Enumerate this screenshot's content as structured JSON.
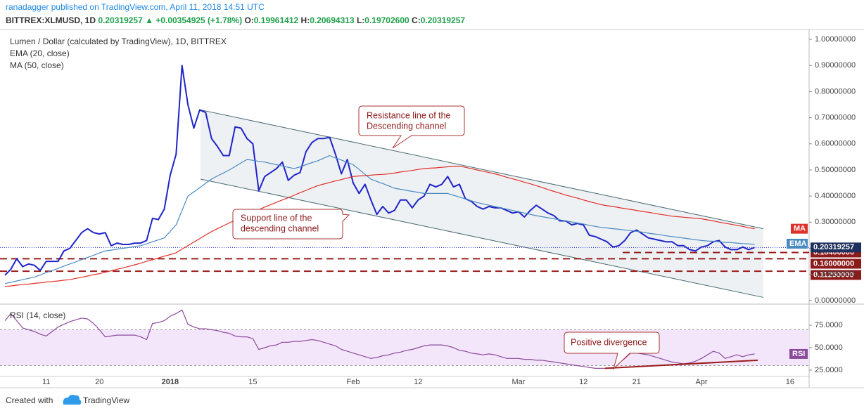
{
  "header": {
    "published": "ranadagger published on TradingView.com, April 11, 2018 14:51 UTC",
    "symbol": "BITTREX:XLMUSD, 1D",
    "last": "0.20319257",
    "change": "▲ +0.00354925 (+1.78%)",
    "ohlc": [
      {
        "label": "O:",
        "value": "0.19961412"
      },
      {
        "label": "H:",
        "value": "0.20694313"
      },
      {
        "label": "L:",
        "value": "0.19702600"
      },
      {
        "label": "C:",
        "value": "0.20319257"
      }
    ]
  },
  "footer": {
    "created": "Created with",
    "brand": "TradingView"
  },
  "chart_data": [
    {
      "type": "line",
      "title": "Lumen / Dollar (calculated by TradingView), 1D, BITTREX",
      "categories": [
        null,
        null,
        null,
        null,
        null,
        null,
        null,
        "11",
        null,
        null,
        null,
        null,
        null,
        null,
        null,
        null,
        "20",
        null,
        null,
        null,
        null,
        null,
        null,
        null,
        null,
        null,
        null,
        null,
        "2018",
        null,
        null,
        null,
        null,
        null,
        null,
        null,
        null,
        null,
        null,
        null,
        null,
        null,
        "15",
        null,
        null,
        null,
        null,
        null,
        null,
        null,
        null,
        null,
        null,
        null,
        null,
        null,
        null,
        null,
        null,
        "Feb",
        null,
        null,
        null,
        null,
        null,
        null,
        null,
        null,
        null,
        null,
        "12",
        null,
        null,
        null,
        null,
        null,
        null,
        null,
        null,
        null,
        null,
        null,
        null,
        null,
        null,
        null,
        null,
        "Mar",
        null,
        null,
        null,
        null,
        null,
        null,
        null,
        null,
        null,
        null,
        "12",
        null,
        null,
        null,
        null,
        null,
        null,
        null,
        null,
        "21",
        null,
        null,
        null,
        null,
        null,
        null,
        null,
        null,
        null,
        null,
        "Apr",
        null,
        null,
        null,
        null,
        null,
        null,
        null,
        null,
        null,
        null,
        null,
        null,
        null,
        null,
        "16",
        null,
        null,
        null
      ],
      "series": [
        {
          "name": "Lumen / Dollar (calculated by TradingView), 1D, BITTREX",
          "color": "#1f24c8",
          "values": [
            0.097,
            0.12,
            0.16,
            0.13,
            0.14,
            0.135,
            0.115,
            0.15,
            0.15,
            0.15,
            0.19,
            0.2,
            0.23,
            0.26,
            0.275,
            0.26,
            0.255,
            0.26,
            0.21,
            0.22,
            0.215,
            0.215,
            0.22,
            0.22,
            0.23,
            0.315,
            0.31,
            0.35,
            0.48,
            0.56,
            0.9,
            0.75,
            0.66,
            0.73,
            0.72,
            0.62,
            0.59,
            0.555,
            0.555,
            0.665,
            0.66,
            0.62,
            0.6,
            0.42,
            0.475,
            0.49,
            0.505,
            0.53,
            0.46,
            0.48,
            0.49,
            0.57,
            0.605,
            0.62,
            0.62,
            0.625,
            0.56,
            0.485,
            0.54,
            0.45,
            0.41,
            0.445,
            0.385,
            0.33,
            0.36,
            0.335,
            0.345,
            0.385,
            0.385,
            0.355,
            0.385,
            0.4,
            0.445,
            0.435,
            0.445,
            0.475,
            0.435,
            0.445,
            0.39,
            0.38,
            0.36,
            0.35,
            0.36,
            0.355,
            0.355,
            0.345,
            0.335,
            0.34,
            0.32,
            0.345,
            0.365,
            0.35,
            0.335,
            0.325,
            0.305,
            0.305,
            0.29,
            0.295,
            0.29,
            0.25,
            0.245,
            0.235,
            0.225,
            0.205,
            0.21,
            0.23,
            0.26,
            0.27,
            0.255,
            0.24,
            0.235,
            0.23,
            0.225,
            0.225,
            0.21,
            0.21,
            0.195,
            0.19,
            0.205,
            0.21,
            0.225,
            0.23,
            0.205,
            0.195,
            0.195,
            0.205,
            0.195,
            0.20319257,
            null,
            null,
            null,
            null,
            null,
            null,
            null,
            null,
            null
          ]
        },
        {
          "name": "EMA (20, close)",
          "color": "#4a8ac0",
          "values": [
            0.065,
            0.07,
            0.075,
            0.08,
            0.085,
            0.09,
            0.098,
            0.107,
            0.115,
            0.123,
            0.132,
            0.14,
            0.148,
            0.157,
            0.165,
            0.173,
            0.182,
            0.19,
            0.193,
            0.197,
            0.2,
            0.203,
            0.207,
            0.21,
            0.217,
            0.225,
            0.232,
            0.24,
            0.265,
            0.29,
            0.345,
            0.4,
            0.416,
            0.432,
            0.449,
            0.465,
            0.477,
            0.488,
            0.5,
            0.513,
            0.527,
            0.54,
            0.537,
            0.533,
            0.53,
            0.525,
            0.52,
            0.515,
            0.51,
            0.505,
            0.512,
            0.52,
            0.528,
            0.535,
            0.545,
            0.555,
            0.546,
            0.538,
            0.529,
            0.52,
            0.502,
            0.483,
            0.465,
            0.456,
            0.448,
            0.439,
            0.43,
            0.426,
            0.422,
            0.418,
            0.414,
            0.41,
            0.41,
            0.41,
            0.41,
            0.41,
            0.403,
            0.396,
            0.389,
            0.382,
            0.375,
            0.37,
            0.365,
            0.36,
            0.355,
            0.35,
            0.345,
            0.34,
            0.335,
            0.33,
            0.325,
            0.321,
            0.317,
            0.313,
            0.309,
            0.305,
            0.301,
            0.297,
            0.293,
            0.288,
            0.284,
            0.28,
            0.278,
            0.275,
            0.273,
            0.27,
            0.268,
            0.265,
            0.262,
            0.258,
            0.255,
            0.252,
            0.248,
            0.245,
            0.242,
            0.239,
            0.236,
            0.233,
            0.23,
            0.228,
            0.227,
            0.225,
            0.223,
            0.222,
            0.22,
            0.218,
            0.217,
            0.215,
            null,
            null,
            null,
            null,
            null,
            null,
            null,
            null,
            null
          ]
        },
        {
          "name": "MA (50, close)",
          "color": "#e0302a",
          "values": [
            0.054,
            0.056,
            0.059,
            0.061,
            0.063,
            0.066,
            0.068,
            0.071,
            0.073,
            0.075,
            0.078,
            0.08,
            0.085,
            0.089,
            0.094,
            0.099,
            0.103,
            0.108,
            0.114,
            0.12,
            0.125,
            0.131,
            0.137,
            0.143,
            0.15,
            0.156,
            0.163,
            0.17,
            0.176,
            0.183,
            0.197,
            0.21,
            0.224,
            0.237,
            0.251,
            0.264,
            0.275,
            0.286,
            0.297,
            0.308,
            0.319,
            0.33,
            0.339,
            0.348,
            0.358,
            0.367,
            0.376,
            0.385,
            0.394,
            0.403,
            0.413,
            0.422,
            0.431,
            0.44,
            0.446,
            0.452,
            0.458,
            0.463,
            0.469,
            0.475,
            0.477,
            0.478,
            0.48,
            0.482,
            0.483,
            0.485,
            0.488,
            0.492,
            0.495,
            0.498,
            0.502,
            0.505,
            0.507,
            0.508,
            0.51,
            0.512,
            0.513,
            0.515,
            0.51,
            0.505,
            0.5,
            0.495,
            0.49,
            0.485,
            0.479,
            0.472,
            0.466,
            0.46,
            0.453,
            0.447,
            0.44,
            0.433,
            0.425,
            0.418,
            0.411,
            0.404,
            0.398,
            0.392,
            0.385,
            0.379,
            0.373,
            0.367,
            0.363,
            0.36,
            0.356,
            0.352,
            0.349,
            0.345,
            0.341,
            0.338,
            0.334,
            0.33,
            0.327,
            0.323,
            0.321,
            0.319,
            0.317,
            0.315,
            0.313,
            0.309,
            0.305,
            0.3,
            0.296,
            0.292,
            0.288,
            0.284,
            0.279,
            0.275,
            null,
            null,
            null,
            null,
            null,
            null,
            null,
            null,
            null
          ]
        }
      ],
      "tags": [
        "EMA",
        "MA"
      ],
      "ylim": [
        -0.011,
        1.035
      ],
      "yticks": [
        {
          "value": 0,
          "label": "0.00000000"
        },
        {
          "value": 0.1,
          "label": "0.10000000"
        },
        {
          "value": 0.2,
          "label": "0.20000000"
        },
        {
          "value": 0.3,
          "label": "0.30000000"
        },
        {
          "value": 0.4,
          "label": "0.40000000"
        },
        {
          "value": 0.5,
          "label": "0.50000000"
        },
        {
          "value": 0.6,
          "label": "0.60000000"
        },
        {
          "value": 0.7,
          "label": "0.70000000"
        },
        {
          "value": 0.8,
          "label": "0.80000000"
        },
        {
          "value": 0.9,
          "label": "0.90000000"
        },
        {
          "value": 1,
          "label": "1.00000000"
        }
      ],
      "levels": [
        {
          "value": 0.184,
          "label": "0.18400000"
        },
        {
          "value": 0.16,
          "label": "0.16000000"
        },
        {
          "value": 0.1125,
          "label": "0.11250000"
        }
      ],
      "channel": {
        "resistance": [
          0.73,
          0.275
        ],
        "support": [
          0.465,
          0.012
        ]
      },
      "annotations": [
        {
          "lines": [
            "Resistance line of the",
            "Descending channel"
          ]
        },
        {
          "lines": [
            "Support line of the",
            "descending channel"
          ]
        }
      ]
    },
    {
      "type": "line",
      "title": "RSI (14, close)",
      "series": [
        {
          "name": "RSI (14, close)",
          "color": "#8c4a9c",
          "values": [
            80,
            88,
            80,
            72,
            70,
            68,
            65,
            63,
            68,
            73,
            76,
            79,
            81,
            83,
            82,
            77,
            70,
            62,
            63,
            64,
            64,
            64,
            64,
            62,
            59,
            77,
            78,
            80,
            85,
            88,
            92,
            76,
            73,
            71,
            71,
            70,
            69,
            67,
            66,
            63,
            62,
            62,
            60,
            48,
            50,
            52,
            53,
            56,
            56,
            57,
            57,
            58,
            59,
            58,
            56,
            54,
            52,
            48,
            46,
            44,
            42,
            40,
            38,
            39,
            41,
            42,
            44,
            45,
            47,
            48,
            50,
            52,
            53,
            53,
            53,
            52,
            50,
            47,
            46,
            44,
            43,
            42,
            43,
            42,
            40,
            38,
            38,
            38,
            37,
            37,
            36,
            36,
            35,
            34,
            33,
            32,
            31,
            30,
            29,
            28,
            27,
            27,
            27,
            27,
            33,
            38,
            44,
            44,
            43,
            42,
            40,
            38,
            36,
            34,
            33,
            32,
            33,
            35,
            38,
            42,
            46,
            44,
            38,
            40,
            42,
            40,
            42,
            43,
            null,
            null,
            null,
            null,
            null,
            null,
            null,
            null,
            null
          ]
        }
      ],
      "tag": "RSI",
      "ylim": [
        18.7,
        97.7
      ],
      "yticks": [
        {
          "value": 25,
          "label": "25.0000"
        },
        {
          "value": 50,
          "label": "50.0000"
        },
        {
          "value": 75,
          "label": "75.0000"
        }
      ],
      "band": [
        30,
        70
      ],
      "divergence": [
        27,
        36
      ],
      "annotations": [
        {
          "lines": [
            "Positive divergence"
          ]
        }
      ]
    }
  ]
}
